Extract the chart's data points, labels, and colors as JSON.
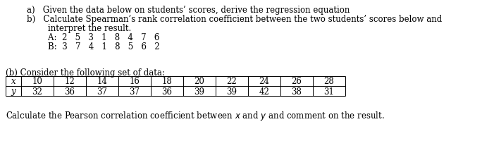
{
  "line_a": "a)   Given the data below on students’ scores, derive the regression equation",
  "line_b": "b)   Calculate Spearman’s rank correlation coefficient between the two students’ scores below and",
  "line_b2": "        interpret the result.",
  "line_A": "        A:  2   5   3   1   8   4   7   6",
  "line_B": "        B:  3   7   4   1   8   5   6   2",
  "table_header": "(b) Consider the following set of data:",
  "x_values": [
    10,
    12,
    14,
    16,
    18,
    20,
    22,
    24,
    26,
    28
  ],
  "y_values": [
    32,
    36,
    37,
    37,
    36,
    39,
    39,
    42,
    38,
    31
  ],
  "footer_pre": "Calculate the Pearson correlation coefficient between ",
  "footer_x": "x",
  "footer_mid": " and ",
  "footer_y": "y",
  "footer_post": " and comment on the result.",
  "bg_color": "#ffffff",
  "text_color": "#000000",
  "font_size": 8.5,
  "font_family": "serif"
}
